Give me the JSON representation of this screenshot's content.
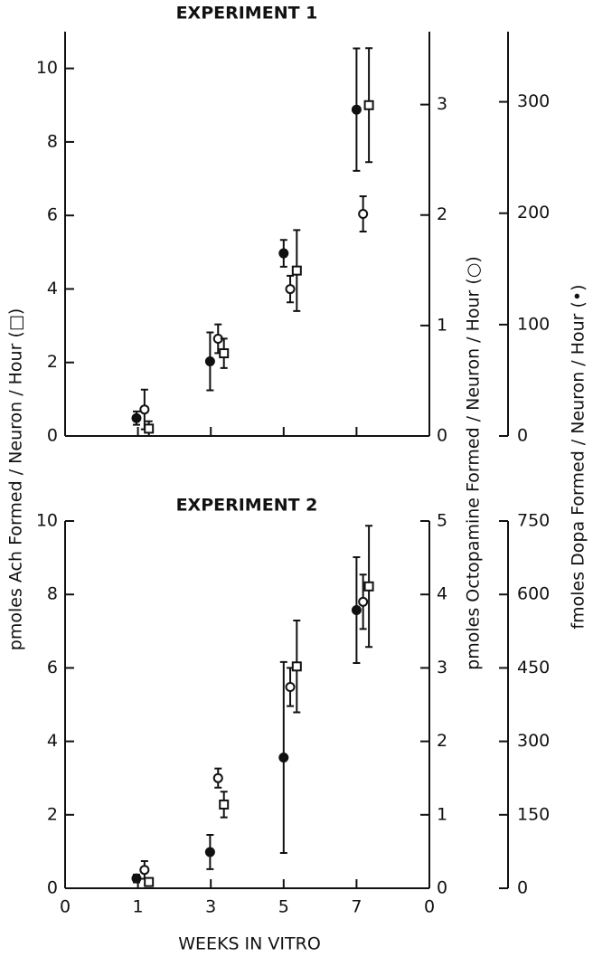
{
  "chart_data": [
    {
      "type": "scatter",
      "title": "EXPERIMENT 1",
      "ylabel": "pmoles Ach Formed / Neuron / Hour (□)",
      "y2label": "pmoles Octopamine Formed / Neuron / Hour (○)",
      "y3label": "fmoles Dopa Formed / Neuron / Hour (•)",
      "xlim": [
        0,
        5
      ],
      "ylim": [
        0,
        11
      ],
      "yticks": [
        0,
        2,
        4,
        6,
        8,
        10
      ],
      "y2lim": [
        0,
        3.66
      ],
      "y2ticks": [
        0,
        1,
        2,
        3
      ],
      "y3lim": [
        0,
        363
      ],
      "y3ticks": [
        0,
        100,
        200,
        300
      ],
      "series": [
        {
          "marker": "filled-circle",
          "axis": "y3",
          "x": [
            0.98,
            1.99,
            3.0,
            4.0
          ],
          "values": [
            16,
            67,
            164,
            293
          ],
          "errors": [
            6,
            26,
            12,
            55
          ]
        },
        {
          "marker": "open-circle",
          "axis": "y2",
          "x": [
            1.09,
            2.1,
            3.09,
            4.09
          ],
          "values": [
            0.24,
            0.88,
            1.33,
            2.01
          ],
          "errors": [
            0.18,
            0.13,
            0.12,
            0.16
          ]
        },
        {
          "marker": "square",
          "axis": "y",
          "x": [
            1.15,
            2.18,
            3.18,
            4.17
          ],
          "values": [
            0.2,
            2.25,
            4.5,
            9.0
          ],
          "errors": [
            0.2,
            0.4,
            1.1,
            1.55
          ]
        }
      ]
    },
    {
      "type": "scatter",
      "title": "EXPERIMENT 2",
      "xlabel": "WEEKS IN VITRO",
      "xlim": [
        0,
        5
      ],
      "xticks": [
        {
          "value": 0,
          "label": "0"
        },
        {
          "value": 1,
          "label": "1"
        },
        {
          "value": 2,
          "label": "3"
        },
        {
          "value": 3,
          "label": "5"
        },
        {
          "value": 4,
          "label": "7"
        },
        {
          "value": 5,
          "label": "0"
        }
      ],
      "ylim": [
        0,
        10
      ],
      "yticks": [
        0,
        2,
        4,
        6,
        8,
        10
      ],
      "y2lim": [
        0,
        5
      ],
      "y2ticks": [
        0,
        1,
        2,
        3,
        4,
        5
      ],
      "y3lim": [
        0,
        750
      ],
      "y3ticks": [
        0,
        150,
        300,
        450,
        600,
        750
      ],
      "series": [
        {
          "marker": "filled-circle",
          "axis": "y3",
          "x": [
            0.98,
            1.99,
            3.0,
            4.0
          ],
          "values": [
            20,
            74,
            267,
            568
          ],
          "errors": [
            8,
            35,
            195,
            108
          ]
        },
        {
          "marker": "open-circle",
          "axis": "y2",
          "x": [
            1.09,
            2.1,
            3.09,
            4.09
          ],
          "values": [
            0.25,
            1.5,
            2.74,
            3.9
          ],
          "errors": [
            0.12,
            0.13,
            0.26,
            0.37
          ]
        },
        {
          "marker": "square",
          "axis": "y",
          "x": [
            1.15,
            2.18,
            3.18,
            4.17
          ],
          "values": [
            0.17,
            2.28,
            6.04,
            8.22
          ],
          "errors": [
            0.08,
            0.35,
            1.25,
            1.65
          ]
        }
      ]
    }
  ]
}
